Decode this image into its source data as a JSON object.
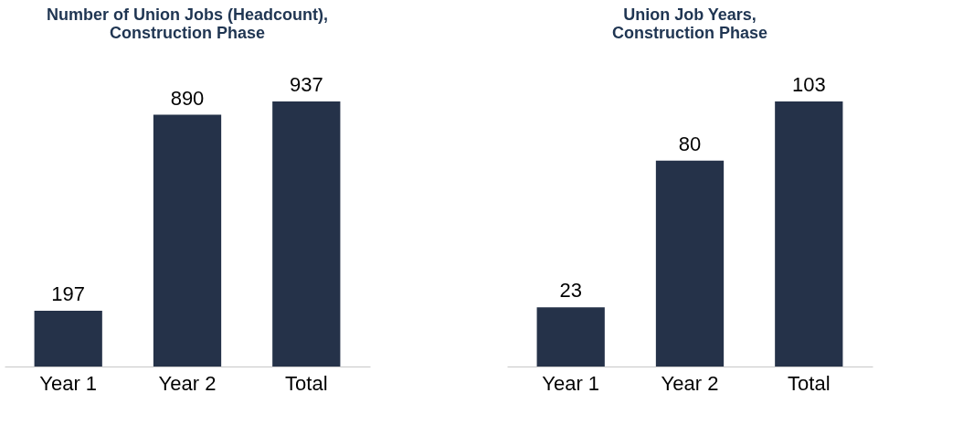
{
  "chart_data": [
    {
      "type": "bar",
      "title": "Number of Union Jobs (Headcount),\nConstruction Phase",
      "categories": [
        "Year 1",
        "Year 2",
        "Total"
      ],
      "values": [
        197,
        890,
        937
      ],
      "color": "#253249",
      "data_labels": true
    },
    {
      "type": "bar",
      "title": "Union Job Years,\nConstruction Phase",
      "categories": [
        "Year 1",
        "Year 2",
        "Total"
      ],
      "values": [
        23,
        80,
        103
      ],
      "color": "#253249",
      "data_labels": true
    }
  ]
}
